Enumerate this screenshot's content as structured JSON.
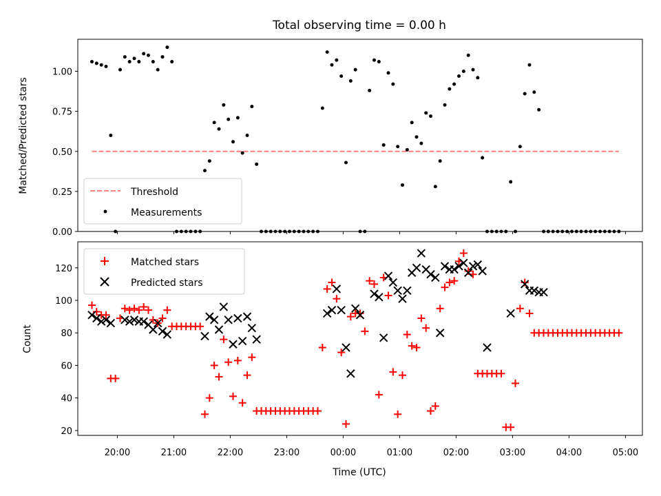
{
  "title": "Total observing time = 0.00 h",
  "colors": {
    "threshold": "#ff7f7f",
    "measurements": "#000000",
    "matched": "#ff0000",
    "predicted": "#000000"
  },
  "chart_data": [
    {
      "type": "scatter",
      "ylabel": "Matched/Predicted stars",
      "xlim": [
        "19:18",
        "05:18"
      ],
      "ylim": [
        0,
        1.2
      ],
      "yticks": [
        0.0,
        0.25,
        0.5,
        0.75,
        1.0
      ],
      "legend_position": "lower-left",
      "series": [
        {
          "name": "Threshold",
          "style": "dashed-line",
          "x": [
            "19:33",
            "04:53"
          ],
          "y": [
            0.5,
            0.5
          ]
        },
        {
          "name": "Measurements",
          "style": "dot",
          "x": [
            "19:33",
            "19:38",
            "19:43",
            "19:48",
            "19:53",
            "19:58",
            "20:03",
            "20:08",
            "20:13",
            "20:18",
            "20:23",
            "20:28",
            "20:33",
            "20:38",
            "20:43",
            "20:48",
            "20:53",
            "20:58",
            "21:03",
            "21:08",
            "21:13",
            "21:18",
            "21:23",
            "21:28",
            "21:33",
            "21:38",
            "21:43",
            "21:48",
            "21:53",
            "21:58",
            "22:03",
            "22:08",
            "22:13",
            "22:18",
            "22:23",
            "22:28",
            "22:33",
            "22:38",
            "22:43",
            "22:48",
            "22:53",
            "22:58",
            "23:03",
            "23:08",
            "23:13",
            "23:18",
            "23:23",
            "23:28",
            "23:33",
            "23:38",
            "23:43",
            "23:48",
            "23:53",
            "23:58",
            "00:03",
            "00:08",
            "00:13",
            "00:18",
            "00:23",
            "00:28",
            "00:33",
            "00:38",
            "00:43",
            "00:48",
            "00:53",
            "00:58",
            "01:03",
            "01:08",
            "01:13",
            "01:18",
            "01:23",
            "01:28",
            "01:33",
            "01:38",
            "01:43",
            "01:48",
            "01:53",
            "01:58",
            "02:03",
            "02:08",
            "02:13",
            "02:18",
            "02:23",
            "02:28",
            "02:33",
            "02:38",
            "02:43",
            "02:48",
            "02:53",
            "02:58",
            "03:03",
            "03:08",
            "03:13",
            "03:18",
            "03:23",
            "03:28",
            "03:33",
            "03:38",
            "03:43",
            "03:48",
            "03:53",
            "03:58",
            "04:03",
            "04:08",
            "04:13",
            "04:18",
            "04:23",
            "04:28",
            "04:33",
            "04:38",
            "04:43",
            "04:48",
            "04:53"
          ],
          "y": [
            1.06,
            1.05,
            1.04,
            1.03,
            0.6,
            0.0,
            1.01,
            1.09,
            1.06,
            1.08,
            1.06,
            1.11,
            1.1,
            1.06,
            1.01,
            1.09,
            1.15,
            1.06,
            0.0,
            0.0,
            0.0,
            0.0,
            0.0,
            0.0,
            0.38,
            0.44,
            0.68,
            0.64,
            0.79,
            0.7,
            0.56,
            0.71,
            0.49,
            0.6,
            0.78,
            0.42,
            0.0,
            0.0,
            0.0,
            0.0,
            0.0,
            0.0,
            0.0,
            0.0,
            0.0,
            0.0,
            0.0,
            0.0,
            0.0,
            0.77,
            1.12,
            1.04,
            1.07,
            0.97,
            0.43,
            0.94,
            1.01,
            0.0,
            0.0,
            0.88,
            1.07,
            1.06,
            0.54,
            0.99,
            0.92,
            0.53,
            0.29,
            0.51,
            0.68,
            0.59,
            0.55,
            0.74,
            0.72,
            0.28,
            0.44,
            0.79,
            0.89,
            0.92,
            0.97,
            1.0,
            1.1,
            1.01,
            0.96,
            0.46,
            0.0,
            0.0,
            0.0,
            0.0,
            0.0,
            0.31,
            0.0,
            0.53,
            0.86,
            1.04,
            0.87,
            0.76,
            0.0,
            0.0,
            0.0,
            0.0,
            0.0,
            0.0,
            0.0,
            0.0,
            0.0,
            0.0,
            0.0,
            0.0,
            0.0,
            0.0,
            0.0,
            0.0,
            0.0
          ]
        }
      ]
    },
    {
      "type": "scatter",
      "xlabel": "Time (UTC)",
      "ylabel": "Count",
      "xlim": [
        "19:18",
        "05:18"
      ],
      "ylim": [
        17,
        136
      ],
      "xticks": [
        "20:00",
        "21:00",
        "22:00",
        "23:00",
        "00:00",
        "01:00",
        "02:00",
        "03:00",
        "04:00",
        "05:00"
      ],
      "yticks": [
        20,
        40,
        60,
        80,
        100,
        120
      ],
      "legend_position": "upper-left",
      "series": [
        {
          "name": "Matched stars",
          "marker": "plus",
          "x": [
            "19:33",
            "19:38",
            "19:43",
            "19:48",
            "19:53",
            "19:58",
            "20:03",
            "20:08",
            "20:13",
            "20:18",
            "20:23",
            "20:28",
            "20:33",
            "20:38",
            "20:43",
            "20:48",
            "20:53",
            "20:58",
            "21:03",
            "21:08",
            "21:13",
            "21:18",
            "21:23",
            "21:28",
            "21:33",
            "21:38",
            "21:43",
            "21:48",
            "21:53",
            "21:58",
            "22:03",
            "22:08",
            "22:13",
            "22:18",
            "22:23",
            "22:28",
            "22:33",
            "22:38",
            "22:43",
            "22:48",
            "22:53",
            "22:58",
            "23:03",
            "23:08",
            "23:13",
            "23:18",
            "23:23",
            "23:28",
            "23:33",
            "23:38",
            "23:43",
            "23:48",
            "23:53",
            "23:58",
            "00:03",
            "00:08",
            "00:13",
            "00:18",
            "00:23",
            "00:28",
            "00:33",
            "00:38",
            "00:43",
            "00:48",
            "00:53",
            "00:58",
            "01:03",
            "01:08",
            "01:13",
            "01:18",
            "01:23",
            "01:28",
            "01:33",
            "01:38",
            "01:43",
            "01:48",
            "01:53",
            "01:58",
            "02:03",
            "02:08",
            "02:13",
            "02:18",
            "02:23",
            "02:28",
            "02:33",
            "02:38",
            "02:43",
            "02:48",
            "02:53",
            "02:58",
            "03:03",
            "03:08",
            "03:13",
            "03:18",
            "03:23",
            "03:28",
            "03:33",
            "03:38",
            "03:43",
            "03:48",
            "03:53",
            "03:58",
            "04:03",
            "04:08",
            "04:13",
            "04:18",
            "04:23",
            "04:28",
            "04:33",
            "04:38",
            "04:43",
            "04:48",
            "04:53"
          ],
          "y": [
            97,
            93,
            91,
            91,
            52,
            52,
            89,
            95,
            94,
            95,
            94,
            96,
            94,
            88,
            86,
            89,
            94,
            84,
            84,
            84,
            84,
            84,
            84,
            84,
            30,
            40,
            60,
            53,
            76,
            62,
            41,
            63,
            37,
            54,
            65,
            32,
            32,
            32,
            32,
            32,
            32,
            32,
            32,
            32,
            32,
            32,
            32,
            32,
            32,
            71,
            107,
            111,
            101,
            68,
            24,
            90,
            92,
            92,
            81,
            112,
            110,
            42,
            114,
            103,
            56,
            30,
            54,
            79,
            72,
            71,
            89,
            83,
            32,
            35,
            95,
            108,
            111,
            112,
            124,
            129,
            118,
            116,
            55,
            55,
            55,
            55,
            55,
            55,
            22,
            22,
            49,
            95,
            111,
            92,
            80,
            80,
            80,
            80,
            80,
            80,
            80,
            80,
            80,
            80,
            80,
            80,
            80,
            80,
            80,
            80,
            80,
            80,
            80
          ]
        },
        {
          "name": "Predicted stars",
          "marker": "x",
          "x": [
            "19:33",
            "19:38",
            "19:43",
            "19:48",
            "19:53",
            "20:08",
            "20:13",
            "20:18",
            "20:23",
            "20:28",
            "20:33",
            "20:38",
            "20:43",
            "20:48",
            "20:53",
            "21:33",
            "21:38",
            "21:43",
            "21:48",
            "21:53",
            "21:58",
            "22:03",
            "22:08",
            "22:13",
            "22:18",
            "22:23",
            "22:28",
            "23:43",
            "23:48",
            "23:53",
            "23:58",
            "00:03",
            "00:08",
            "00:13",
            "00:18",
            "00:33",
            "00:38",
            "00:43",
            "00:48",
            "00:53",
            "00:58",
            "01:03",
            "01:08",
            "01:13",
            "01:18",
            "01:23",
            "01:28",
            "01:33",
            "01:38",
            "01:43",
            "01:48",
            "01:53",
            "01:58",
            "02:03",
            "02:08",
            "02:13",
            "02:18",
            "02:23",
            "02:28",
            "02:33",
            "02:58",
            "03:13",
            "03:18",
            "03:23",
            "03:28",
            "03:33"
          ],
          "y": [
            91,
            89,
            87,
            88,
            86,
            88,
            87,
            88,
            87,
            87,
            85,
            82,
            86,
            81,
            79,
            78,
            90,
            88,
            82,
            96,
            88,
            73,
            89,
            75,
            90,
            83,
            76,
            92,
            94,
            107,
            94,
            71,
            55,
            95,
            91,
            104,
            102,
            77,
            115,
            111,
            106,
            101,
            106,
            117,
            120,
            129,
            119,
            116,
            114,
            80,
            121,
            119,
            119,
            121,
            123,
            117,
            121,
            122,
            118,
            71,
            92,
            110,
            106,
            106,
            105,
            105
          ]
        }
      ]
    }
  ]
}
